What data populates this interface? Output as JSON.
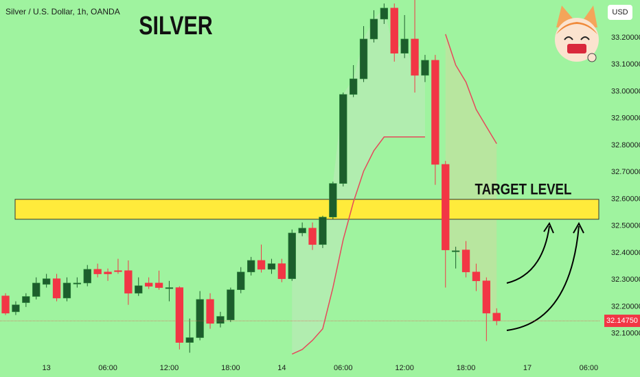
{
  "chart_data": {
    "type": "candlestick",
    "subtitle": "Silver / U.S. Dollar, 1h, OANDA",
    "title": "SILVER",
    "annotation": "TARGET LEVEL",
    "currency": "USD",
    "x": [
      0,
      1,
      2,
      3,
      4,
      5,
      6,
      7,
      8,
      9,
      10,
      11,
      12,
      13,
      14,
      15,
      16,
      17,
      18,
      19,
      20,
      21,
      22,
      23,
      24,
      25,
      26,
      27,
      28,
      29,
      30,
      31,
      32,
      33,
      34,
      35,
      36,
      37,
      38,
      39,
      40,
      41,
      42,
      43,
      44,
      45,
      46,
      47,
      48
    ],
    "open": [
      32.24,
      32.181,
      32.215,
      32.238,
      32.283,
      32.304,
      32.232,
      32.288,
      32.288,
      32.339,
      32.329,
      32.334,
      32.334,
      32.25,
      32.288,
      32.288,
      32.271,
      32.271,
      32.067,
      32.085,
      32.227,
      32.138,
      32.151,
      32.263,
      32.329,
      32.372,
      32.339,
      32.36,
      32.304,
      32.474,
      32.492,
      32.431,
      32.533,
      32.658,
      32.989,
      33.047,
      33.195,
      33.269,
      33.31,
      33.142,
      33.195,
      33.06,
      33.116,
      32.729,
      32.408,
      32.411,
      32.329,
      32.296,
      32.176
    ],
    "high": [
      32.25,
      32.22,
      32.25,
      32.309,
      32.322,
      32.322,
      32.309,
      32.309,
      32.355,
      32.36,
      32.342,
      32.378,
      32.372,
      32.309,
      32.309,
      32.334,
      32.296,
      32.276,
      32.156,
      32.258,
      32.25,
      32.181,
      32.271,
      32.347,
      32.385,
      32.431,
      32.378,
      32.378,
      32.487,
      32.513,
      32.513,
      32.538,
      32.665,
      32.996,
      33.098,
      33.243,
      33.302,
      33.327,
      33.327,
      33.284,
      33.34,
      33.136,
      33.136,
      32.742,
      32.423,
      32.444,
      32.36,
      32.309,
      32.194
    ],
    "low": [
      32.169,
      32.169,
      32.199,
      32.227,
      32.271,
      32.22,
      32.22,
      32.271,
      32.276,
      32.309,
      32.296,
      32.322,
      32.207,
      32.24,
      32.266,
      32.263,
      32.22,
      32.041,
      32.029,
      32.075,
      32.118,
      32.123,
      32.143,
      32.25,
      32.316,
      32.327,
      32.322,
      32.291,
      32.296,
      32.462,
      32.411,
      32.418,
      32.525,
      32.647,
      32.979,
      33.035,
      33.182,
      33.251,
      33.111,
      33.124,
      32.996,
      33.035,
      32.653,
      32.271,
      32.342,
      32.309,
      32.258,
      32.072,
      32.131
    ],
    "close": [
      32.176,
      32.207,
      32.238,
      32.288,
      32.304,
      32.232,
      32.288,
      32.288,
      32.339,
      32.322,
      32.322,
      32.332,
      32.25,
      32.278,
      32.276,
      32.271,
      32.271,
      32.067,
      32.085,
      32.227,
      32.138,
      32.164,
      32.263,
      32.329,
      32.372,
      32.339,
      32.36,
      32.304,
      32.474,
      32.492,
      32.431,
      32.533,
      32.658,
      32.989,
      33.047,
      33.195,
      33.269,
      33.31,
      33.142,
      33.195,
      33.06,
      33.116,
      32.729,
      32.411,
      32.408,
      32.329,
      32.296,
      32.176,
      32.1475
    ],
    "trail_lower": [
      null,
      null,
      null,
      null,
      null,
      null,
      null,
      null,
      null,
      null,
      null,
      null,
      null,
      null,
      null,
      null,
      null,
      null,
      null,
      null,
      null,
      null,
      null,
      null,
      null,
      null,
      null,
      null,
      32.024,
      32.041,
      32.075,
      32.118,
      32.271,
      32.449,
      32.589,
      32.704,
      32.78,
      32.831,
      32.831,
      32.831,
      32.831,
      32.831,
      null,
      null,
      null,
      null,
      null,
      null,
      null
    ],
    "trail_upper": [
      null,
      null,
      null,
      null,
      null,
      null,
      null,
      null,
      null,
      null,
      null,
      null,
      null,
      null,
      null,
      null,
      null,
      null,
      null,
      null,
      null,
      null,
      null,
      null,
      null,
      null,
      null,
      null,
      null,
      null,
      null,
      null,
      null,
      null,
      null,
      null,
      null,
      null,
      null,
      null,
      null,
      null,
      null,
      33.213,
      33.098,
      33.035,
      32.933,
      32.869,
      32.806
    ],
    "up_color": "#1c5e2c",
    "down_color": "#f23645",
    "trail_color": "#e5495b",
    "zone": [
      32.525,
      32.599
    ],
    "zone_color": "#ffeb3b",
    "last_price": {
      "value": 32.1475,
      "label": "32.14750"
    },
    "xlim": [
      -0.54,
      58.05
    ],
    "xticks": [
      {
        "value": 4,
        "label": "13"
      },
      {
        "value": 10,
        "label": "06:00"
      },
      {
        "value": 16,
        "label": "12:00"
      },
      {
        "value": 22,
        "label": "18:00"
      },
      {
        "value": 27,
        "label": "14"
      },
      {
        "value": 33,
        "label": "06:00"
      },
      {
        "value": 39,
        "label": "12:00"
      },
      {
        "value": 45,
        "label": "18:00"
      },
      {
        "value": 51,
        "label": "17"
      },
      {
        "value": 57,
        "label": "06:00"
      }
    ],
    "ylim": [
      32.01,
      33.34
    ],
    "yticks": [
      {
        "value": 32.1,
        "label": "32.10000"
      },
      {
        "value": 32.2,
        "label": "32.20000"
      },
      {
        "value": 32.3,
        "label": "32.30000"
      },
      {
        "value": 32.4,
        "label": "32.40000"
      },
      {
        "value": 32.5,
        "label": "32.50000"
      },
      {
        "value": 32.6,
        "label": "32.60000"
      },
      {
        "value": 32.7,
        "label": "32.70000"
      },
      {
        "value": 32.8,
        "label": "32.80000"
      },
      {
        "value": 32.9,
        "label": "32.90000"
      },
      {
        "value": 33.0,
        "label": "33.00000"
      },
      {
        "value": 33.1,
        "label": "33.10000"
      },
      {
        "value": 33.2,
        "label": "33.20000"
      }
    ]
  }
}
